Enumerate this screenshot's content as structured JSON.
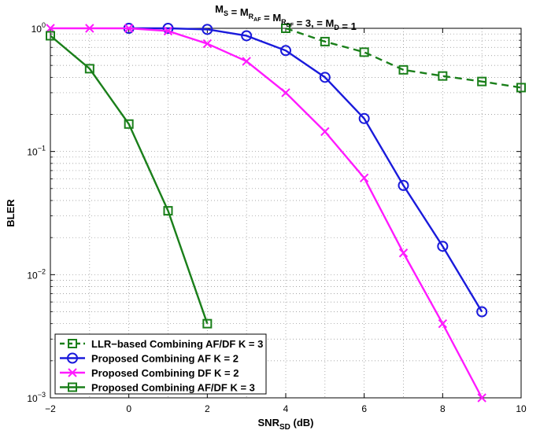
{
  "chart_data": {
    "type": "line",
    "title": {
      "main": "M",
      "parts": [
        {
          "t": "M",
          "sub": "S"
        },
        {
          "t": " = M",
          "sub": "R",
          "subsub": "AF"
        },
        {
          "t": " = M",
          "sub": "R",
          "subsub": "DF"
        },
        {
          "t": " = 3,  = M",
          "sub": "D"
        },
        {
          "t": " = 1"
        }
      ]
    },
    "xlabel": {
      "main": "SNR",
      "sub": "SD",
      "unit": " (dB)"
    },
    "ylabel": "BLER",
    "xlim": [
      -2,
      10
    ],
    "ylim": [
      0.001,
      1
    ],
    "yscale": "log",
    "grid": true,
    "x_ticks": [
      -2,
      0,
      2,
      4,
      6,
      8,
      10
    ],
    "x_tick_labels": [
      "−2",
      "0",
      "2",
      "4",
      "6",
      "8",
      "10"
    ],
    "y_ticks": [
      {
        "base": "10",
        "exp": "0",
        "value": 1
      },
      {
        "base": "10",
        "exp": "−1",
        "value": 0.1
      },
      {
        "base": "10",
        "exp": "−2",
        "value": 0.01
      },
      {
        "base": "10",
        "exp": "−3",
        "value": 0.001
      }
    ],
    "legend_position": "bottom-left",
    "series": [
      {
        "name": "LLR−based Combining AF/DF K = 3",
        "color": "#1a7f1a",
        "marker": "square",
        "dash": "dashed",
        "x": [
          4,
          5,
          6,
          7,
          8,
          9,
          10
        ],
        "y": [
          1.0,
          0.78,
          0.64,
          0.46,
          0.41,
          0.37,
          0.33
        ]
      },
      {
        "name": "Proposed Combining AF K = 2",
        "color": "#1a1adb",
        "marker": "circle",
        "dash": "solid",
        "x": [
          0,
          1,
          2,
          3,
          4,
          5,
          6,
          7,
          8,
          9
        ],
        "y": [
          1.0,
          1.0,
          0.98,
          0.87,
          0.66,
          0.4,
          0.185,
          0.053,
          0.017,
          0.005
        ]
      },
      {
        "name": "Proposed Combining DF K = 2",
        "color": "#ff1aff",
        "marker": "x",
        "dash": "solid",
        "x": [
          -2,
          -1,
          0,
          1,
          2,
          3,
          4,
          5,
          6,
          7,
          8,
          9
        ],
        "y": [
          1.0,
          1.0,
          1.0,
          0.95,
          0.75,
          0.54,
          0.3,
          0.145,
          0.061,
          0.015,
          0.004,
          0.001
        ]
      },
      {
        "name": "Proposed Combining AF/DF K = 3",
        "color": "#1a7f1a",
        "marker": "square",
        "dash": "solid",
        "x": [
          -2,
          -1,
          0,
          1,
          2
        ],
        "y": [
          0.87,
          0.47,
          0.167,
          0.033,
          0.004
        ]
      }
    ]
  }
}
